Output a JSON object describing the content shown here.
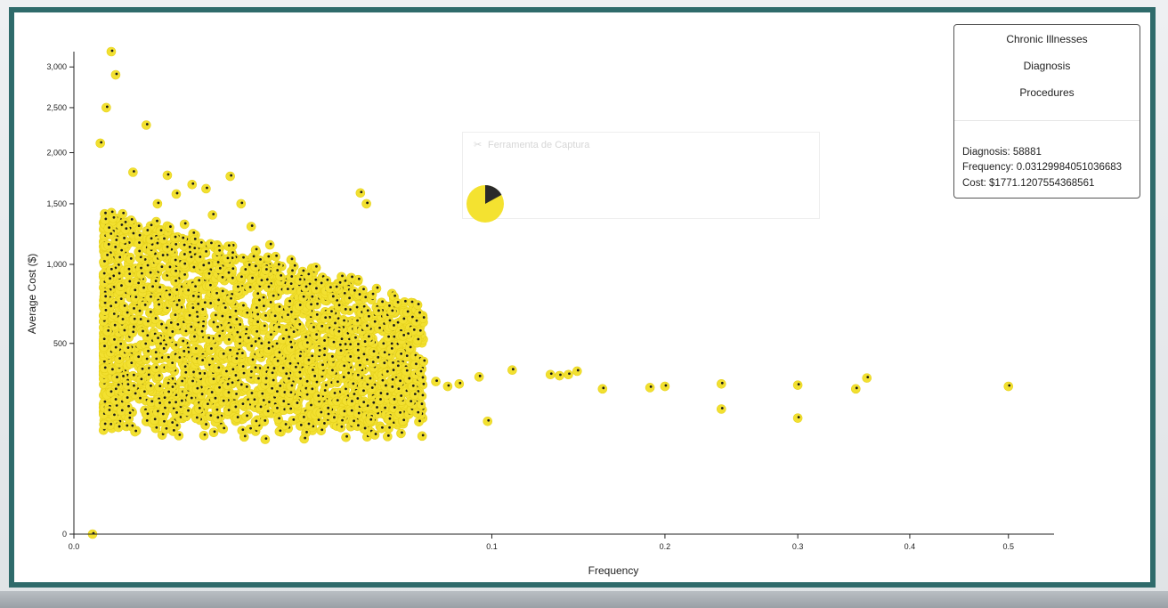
{
  "legend": {
    "items": [
      "Chronic Illnesses",
      "Diagnosis",
      "Procedures"
    ],
    "info": {
      "diagnosis": "Diagnosis: 58881",
      "frequency": "Frequency: 0.031299840510366​83",
      "cost": "Cost: $1771.1207554368561"
    }
  },
  "overlay": {
    "title": "Ferramenta de Captura",
    "icon": "scissors-icon"
  },
  "colors": {
    "point": "#f2e030",
    "point_stroke": "#e6d21c",
    "center": "#1a1a1a",
    "frame": "#2f6b6b"
  },
  "chart_data": {
    "type": "scatter",
    "title": "",
    "xlabel": "Frequency",
    "ylabel": "Average Cost ($)",
    "x_scale": "sqrt",
    "y_scale": "sqrt",
    "xlim": [
      0,
      0.55
    ],
    "ylim": [
      0,
      3200
    ],
    "x_ticks": [
      0,
      0.1,
      0.2,
      0.3,
      0.4,
      0.5
    ],
    "x_tick_labels": [
      "0.0",
      "0.1",
      "0.2",
      "0.3",
      "0.4",
      "0.5"
    ],
    "y_ticks": [
      0,
      500,
      1000,
      1500,
      2000,
      2500,
      3000
    ],
    "y_tick_labels": [
      "0",
      "500",
      "1,000",
      "1,500",
      "2,000",
      "2,500",
      "3,000"
    ],
    "highlighted": {
      "x": 0.0313,
      "y": 1771.12
    },
    "series": [
      {
        "points": [
          [
            0.5,
            300
          ],
          [
            0.36,
            335
          ],
          [
            0.35,
            290
          ],
          [
            0.3,
            305
          ],
          [
            0.3,
            185
          ],
          [
            0.24,
            310
          ],
          [
            0.24,
            215
          ],
          [
            0.2,
            300
          ],
          [
            0.19,
            295
          ],
          [
            0.16,
            290
          ],
          [
            0.145,
            365
          ],
          [
            0.14,
            350
          ],
          [
            0.135,
            345
          ],
          [
            0.13,
            350
          ],
          [
            0.11,
            370
          ],
          [
            0.098,
            175
          ],
          [
            0.094,
            340
          ],
          [
            0.085,
            310
          ],
          [
            0.08,
            300
          ],
          [
            0.075,
            320
          ],
          [
            0.07,
            410
          ],
          [
            0.069,
            230
          ],
          [
            0.062,
            540
          ],
          [
            0.058,
            400
          ],
          [
            0.056,
            360
          ],
          [
            0.055,
            450
          ],
          [
            0.05,
            330
          ],
          [
            0.049,
            1500
          ],
          [
            0.047,
            1600
          ],
          [
            0.046,
            160
          ],
          [
            0.044,
            240
          ],
          [
            0.042,
            690
          ],
          [
            0.04,
            560
          ],
          [
            0.038,
            430
          ],
          [
            0.036,
            640
          ],
          [
            0.035,
            590
          ],
          [
            0.034,
            260
          ],
          [
            0.033,
            340
          ],
          [
            0.032,
            720
          ],
          [
            0.031,
            500
          ],
          [
            0.03,
            770
          ],
          [
            0.029,
            600
          ],
          [
            0.028,
            380
          ],
          [
            0.027,
            300
          ],
          [
            0.026,
            820
          ],
          [
            0.025,
            240
          ],
          [
            0.024,
            450
          ],
          [
            0.023,
            650
          ],
          [
            0.022,
            1150
          ],
          [
            0.021,
            330
          ],
          [
            0.02,
            880
          ],
          [
            0.019,
            560
          ],
          [
            0.018,
            1300
          ],
          [
            0.017,
            190
          ],
          [
            0.016,
            1500
          ],
          [
            0.015,
            420
          ],
          [
            0.014,
            1760
          ],
          [
            0.013,
            700
          ],
          [
            0.012,
            1100
          ],
          [
            0.011,
            1400
          ],
          [
            0.01,
            1640
          ],
          [
            0.009,
            1050
          ],
          [
            0.008,
            1680
          ],
          [
            0.007,
            1320
          ],
          [
            0.006,
            1590
          ],
          [
            0.005,
            1770
          ],
          [
            0.004,
            1500
          ],
          [
            0.003,
            2300
          ],
          [
            0.002,
            1800
          ],
          [
            0.001,
            2900
          ],
          [
            0.0008,
            3200
          ],
          [
            0.0006,
            2500
          ],
          [
            0.0004,
            2100
          ],
          [
            0.0002,
            0
          ]
        ]
      }
    ],
    "cloud": {
      "count": 2400,
      "x_range": [
        0.0005,
        0.07
      ],
      "y_range": [
        0,
        1300
      ]
    }
  }
}
